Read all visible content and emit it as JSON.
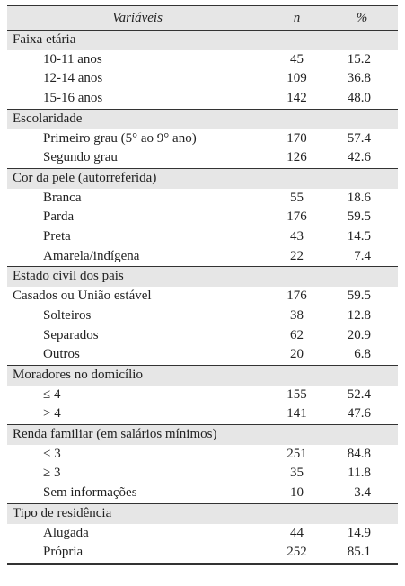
{
  "header": {
    "variable": "Variáveis",
    "n": "n",
    "percent": "%"
  },
  "sections": [
    {
      "title": "Faixa etária",
      "rows": [
        [
          "10-11 anos",
          "45",
          "15.2"
        ],
        [
          "12-14 anos",
          "109",
          "36.8"
        ],
        [
          "15-16 anos",
          "142",
          "48.0"
        ]
      ]
    },
    {
      "title": "Escolaridade",
      "rows": [
        [
          "Primeiro grau (5° ao 9° ano)",
          "170",
          "57.4"
        ],
        [
          "Segundo grau",
          "126",
          "42.6"
        ]
      ]
    },
    {
      "title": "Cor da pele (autorreferida)",
      "rows": [
        [
          "Branca",
          "55",
          "18.6"
        ],
        [
          "Parda",
          "176",
          "59.5"
        ],
        [
          "Preta",
          "43",
          "14.5"
        ],
        [
          "Amarela/indígena",
          "22",
          "7.4"
        ]
      ]
    },
    {
      "title": "Estado civil dos pais",
      "rows": [
        [
          "Casados ou União estável",
          "176",
          "59.5"
        ],
        [
          "Solteiros",
          "38",
          "12.8"
        ],
        [
          "Separados",
          "62",
          "20.9"
        ],
        [
          "Outros",
          "20",
          "6.8"
        ]
      ]
    },
    {
      "title": "Moradores no domicílio",
      "rows": [
        [
          "≤ 4",
          "155",
          "52.4"
        ],
        [
          "> 4",
          "141",
          "47.6"
        ]
      ]
    },
    {
      "title": "Renda familiar (em salários mínimos)",
      "rows": [
        [
          "< 3",
          "251",
          "84.8"
        ],
        [
          "≥ 3",
          "35",
          "11.8"
        ],
        [
          "Sem informações",
          "10",
          "3.4"
        ]
      ]
    },
    {
      "title": "Tipo de residência",
      "rows": [
        [
          "Alugada",
          "44",
          "14.9"
        ],
        [
          "Própria",
          "252",
          "85.1"
        ]
      ]
    }
  ]
}
